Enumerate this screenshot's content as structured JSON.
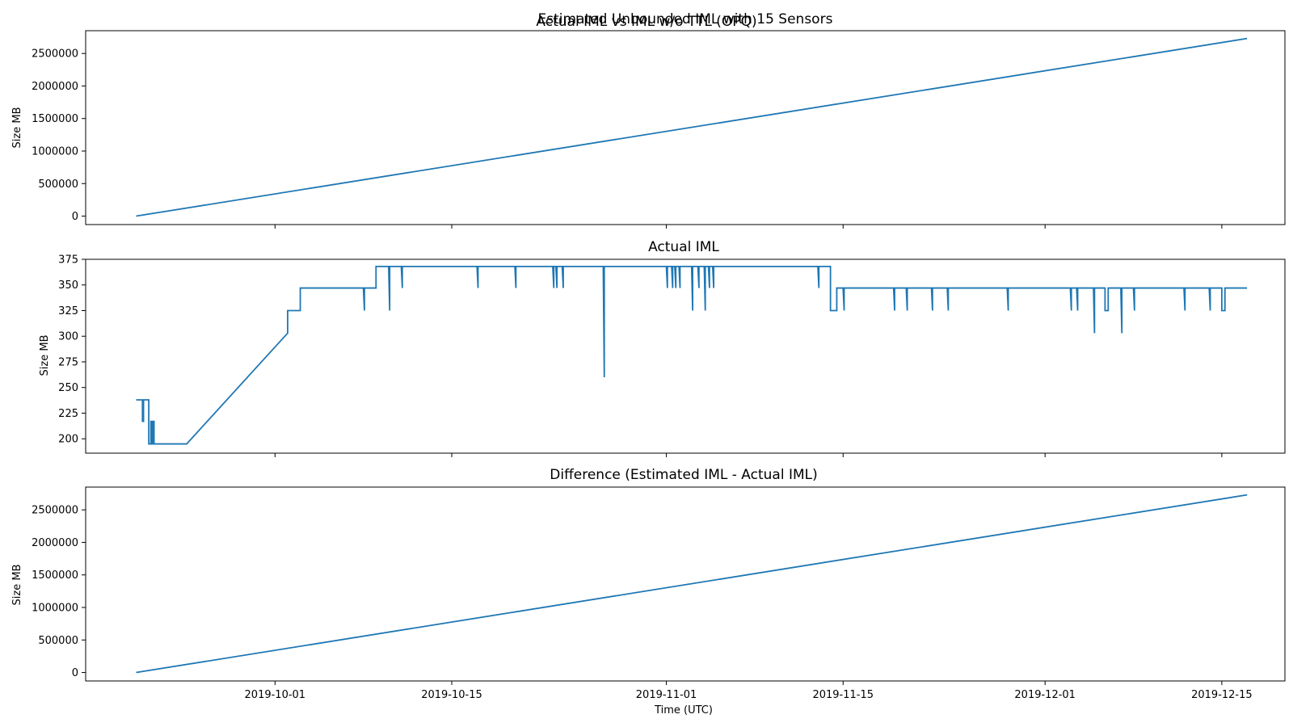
{
  "figure": {
    "suptitle": "Estimated Unbounded IML with 15 Sensors",
    "line_color": "#1f77b4",
    "xlabel": "Time (UTC)",
    "x_ticks": [
      "2019-10-01",
      "2019-10-15",
      "2019-11-01",
      "2019-11-15",
      "2019-12-01",
      "2019-12-15"
    ]
  },
  "chart_data": [
    {
      "type": "line",
      "title": "Actual IML vs IML w/o TTL (OPQ)",
      "xlabel": "",
      "ylabel": "Size MB",
      "xlim": [
        "2019-09-16",
        "2019-12-20"
      ],
      "ylim": [
        -130000,
        2850000
      ],
      "y_ticks": [
        0,
        500000,
        1000000,
        1500000,
        2000000,
        2500000
      ],
      "x_ticks": [
        "2019-10-01",
        "2019-10-15",
        "2019-11-01",
        "2019-11-15",
        "2019-12-01",
        "2019-12-15"
      ],
      "grid": false,
      "series": [
        {
          "x": [
            "2019-09-20",
            "2019-12-17"
          ],
          "y": [
            0,
            2730000
          ]
        }
      ]
    },
    {
      "type": "line",
      "title": "Actual IML",
      "xlabel": "",
      "ylabel": "Size MB",
      "xlim": [
        "2019-09-16",
        "2019-12-20"
      ],
      "ylim": [
        186,
        375
      ],
      "y_ticks": [
        200,
        225,
        250,
        275,
        300,
        325,
        350,
        375
      ],
      "x_ticks": [
        "2019-10-01",
        "2019-10-15",
        "2019-11-01",
        "2019-11-15",
        "2019-12-01",
        "2019-12-15"
      ],
      "grid": false,
      "series": [
        {
          "x": [
            "2019-09-20",
            "2019-09-20T12:00",
            "2019-09-20T12:00",
            "2019-09-20T14:00",
            "2019-09-20T14:00",
            "2019-09-21",
            "2019-09-21",
            "2019-09-21T04:00",
            "2019-09-21T04:00",
            "2019-09-21T06:00",
            "2019-09-21T06:00",
            "2019-09-21T08:00",
            "2019-09-21T08:00",
            "2019-09-21T10:00",
            "2019-09-21T10:00",
            "2019-09-24",
            "2019-10-02",
            "2019-10-02",
            "2019-10-03",
            "2019-10-03",
            "2019-10-08",
            "2019-10-08T02:00",
            "2019-10-08T02:00",
            "2019-10-09",
            "2019-10-09",
            "2019-10-10",
            "2019-10-10T02:00",
            "2019-10-10T02:00",
            "2019-10-11",
            "2019-10-11T02:00",
            "2019-10-11T02:00",
            "2019-10-17",
            "2019-10-17T02:00",
            "2019-10-17T02:00",
            "2019-10-20",
            "2019-10-20T02:00",
            "2019-10-20T02:00",
            "2019-10-23",
            "2019-10-23T02:00",
            "2019-10-23T02:00",
            "2019-10-23T06:00",
            "2019-10-23T08:00",
            "2019-10-23T08:00",
            "2019-10-23T18:00",
            "2019-10-23T20:00",
            "2019-10-23T20:00",
            "2019-10-27",
            "2019-10-27T02:00",
            "2019-10-27T02:00",
            "2019-11-01",
            "2019-11-01T02:00",
            "2019-11-01T02:00",
            "2019-11-01T10:00",
            "2019-11-01T12:00",
            "2019-11-01T12:00",
            "2019-11-01T16:00",
            "2019-11-01T18:00",
            "2019-11-01T18:00",
            "2019-11-02",
            "2019-11-02T02:00",
            "2019-11-02T02:00",
            "2019-11-03",
            "2019-11-03T02:00",
            "2019-11-03T02:00",
            "2019-11-03T12:00",
            "2019-11-03T14:00",
            "2019-11-03T14:00",
            "2019-11-04",
            "2019-11-04T02:00",
            "2019-11-04T02:00",
            "2019-11-04T08:00",
            "2019-11-04T10:00",
            "2019-11-04T10:00",
            "2019-11-04T16:00",
            "2019-11-04T18:00",
            "2019-11-04T18:00",
            "2019-11-13",
            "2019-11-13T02:00",
            "2019-11-13T02:00",
            "2019-11-14",
            "2019-11-14",
            "2019-11-14T12:00",
            "2019-11-14T12:00",
            "2019-11-15",
            "2019-11-15T02:00",
            "2019-11-15T02:00",
            "2019-11-19",
            "2019-11-19T02:00",
            "2019-11-19T02:00",
            "2019-11-20",
            "2019-11-20T02:00",
            "2019-11-20T02:00",
            "2019-11-22",
            "2019-11-22T02:00",
            "2019-11-22T02:00",
            "2019-11-23T06:00",
            "2019-11-23T08:00",
            "2019-11-23T08:00",
            "2019-11-28",
            "2019-11-28T02:00",
            "2019-11-28T02:00",
            "2019-12-03",
            "2019-12-03T02:00",
            "2019-12-03T02:00",
            "2019-12-03T12:00",
            "2019-12-03T14:00",
            "2019-12-03T14:00",
            "2019-12-04T20:00",
            "2019-12-04T22:00",
            "2019-12-04T22:00",
            "2019-12-05T18:00",
            "2019-12-05T18:00",
            "2019-12-06",
            "2019-12-06",
            "2019-12-07",
            "2019-12-07T02:00",
            "2019-12-07T02:00",
            "2019-12-08",
            "2019-12-08T02:00",
            "2019-12-08T02:00",
            "2019-12-12",
            "2019-12-12T02:00",
            "2019-12-12T02:00",
            "2019-12-14",
            "2019-12-14T02:00",
            "2019-12-14T02:00",
            "2019-12-15",
            "2019-12-15",
            "2019-12-15T06:00",
            "2019-12-15T06:00",
            "2019-12-17"
          ],
          "y": [
            238,
            238,
            217,
            217,
            238,
            238,
            195,
            195,
            217,
            217,
            195,
            195,
            217,
            217,
            195,
            195,
            303,
            325,
            325,
            347,
            347,
            325,
            347,
            347,
            368,
            368,
            325,
            368,
            368,
            347,
            368,
            368,
            347,
            368,
            368,
            347,
            368,
            368,
            347,
            368,
            368,
            347,
            368,
            368,
            347,
            368,
            368,
            260,
            368,
            368,
            347,
            368,
            368,
            347,
            368,
            368,
            347,
            368,
            368,
            347,
            368,
            368,
            325,
            368,
            368,
            347,
            368,
            368,
            325,
            368,
            368,
            347,
            368,
            368,
            347,
            368,
            368,
            347,
            368,
            368,
            325,
            325,
            347,
            347,
            325,
            347,
            347,
            325,
            347,
            347,
            325,
            347,
            347,
            325,
            347,
            347,
            325,
            347,
            347,
            325,
            347,
            347,
            325,
            347,
            347,
            325,
            347,
            347,
            303,
            347,
            347,
            325,
            325,
            347,
            347,
            303,
            347,
            347,
            325,
            347,
            347,
            325,
            347,
            347,
            325,
            347,
            347,
            325,
            325,
            347,
            347
          ]
        }
      ]
    },
    {
      "type": "line",
      "title": "Difference (Estimated IML - Actual IML)",
      "xlabel": "Time (UTC)",
      "ylabel": "Size MB",
      "xlim": [
        "2019-09-16",
        "2019-12-20"
      ],
      "ylim": [
        -130000,
        2850000
      ],
      "y_ticks": [
        0,
        500000,
        1000000,
        1500000,
        2000000,
        2500000
      ],
      "x_ticks": [
        "2019-10-01",
        "2019-10-15",
        "2019-11-01",
        "2019-11-15",
        "2019-12-01",
        "2019-12-15"
      ],
      "grid": false,
      "series": [
        {
          "x": [
            "2019-09-20",
            "2019-12-17"
          ],
          "y": [
            0,
            2730000
          ]
        }
      ]
    }
  ]
}
